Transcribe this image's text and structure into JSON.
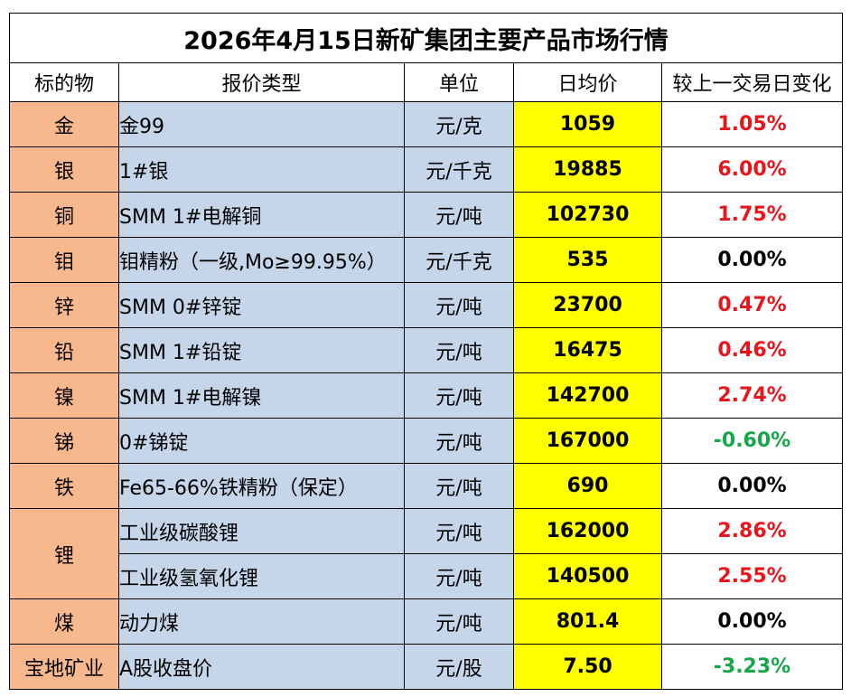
{
  "table": {
    "title": "2026年4月15日新矿集团主要产品市场行情",
    "headers": [
      "标的物",
      "报价类型",
      "单位",
      "日均价",
      "较上一交易日变化"
    ],
    "rows": [
      {
        "subject": "金",
        "type": "金99",
        "unit": "元/克",
        "price": "1059",
        "change": "1.05%",
        "dir": "up"
      },
      {
        "subject": "银",
        "type": "1#银",
        "unit": "元/千克",
        "price": "19885",
        "change": "6.00%",
        "dir": "up"
      },
      {
        "subject": "铜",
        "type": "SMM 1#电解铜",
        "unit": "元/吨",
        "price": "102730",
        "change": "1.75%",
        "dir": "up"
      },
      {
        "subject": "钼",
        "type": "钼精粉（一级,Mo≥99.95%）",
        "unit": "元/千克",
        "price": "535",
        "change": "0.00%",
        "dir": "flat"
      },
      {
        "subject": "锌",
        "type": "SMM 0#锌锭",
        "unit": "元/吨",
        "price": "23700",
        "change": "0.47%",
        "dir": "up"
      },
      {
        "subject": "铅",
        "type": "SMM 1#铅锭",
        "unit": "元/吨",
        "price": "16475",
        "change": "0.46%",
        "dir": "up"
      },
      {
        "subject": "镍",
        "type": "SMM 1#电解镍",
        "unit": "元/吨",
        "price": "142700",
        "change": "2.74%",
        "dir": "up"
      },
      {
        "subject": "锑",
        "type": "0#锑锭",
        "unit": "元/吨",
        "price": "167000",
        "change": "-0.60%",
        "dir": "down"
      },
      {
        "subject": "铁",
        "type": "Fe65-66%铁精粉（保定）",
        "unit": "元/吨",
        "price": "690",
        "change": "0.00%",
        "dir": "flat"
      },
      {
        "subject": "锂",
        "type": "工业级碳酸锂",
        "unit": "元/吨",
        "price": "162000",
        "change": "2.86%",
        "dir": "up"
      },
      {
        "subject": "",
        "type": "工业级氢氧化锂",
        "unit": "元/吨",
        "price": "140500",
        "change": "2.55%",
        "dir": "up"
      },
      {
        "subject": "煤",
        "type": "动力煤",
        "unit": "元/吨",
        "price": "801.4",
        "change": "0.00%",
        "dir": "flat"
      },
      {
        "subject": "宝地矿业",
        "type": "A股收盘价",
        "unit": "元/股",
        "price": "7.50",
        "change": "-3.23%",
        "dir": "down"
      }
    ]
  },
  "colors": {
    "subject_bg": "#f8b88e",
    "type_bg": "#c5d6eb",
    "price_bg": "#ffff00",
    "up": "#e8151b",
    "down": "#17a64a",
    "flat": "#000000"
  }
}
